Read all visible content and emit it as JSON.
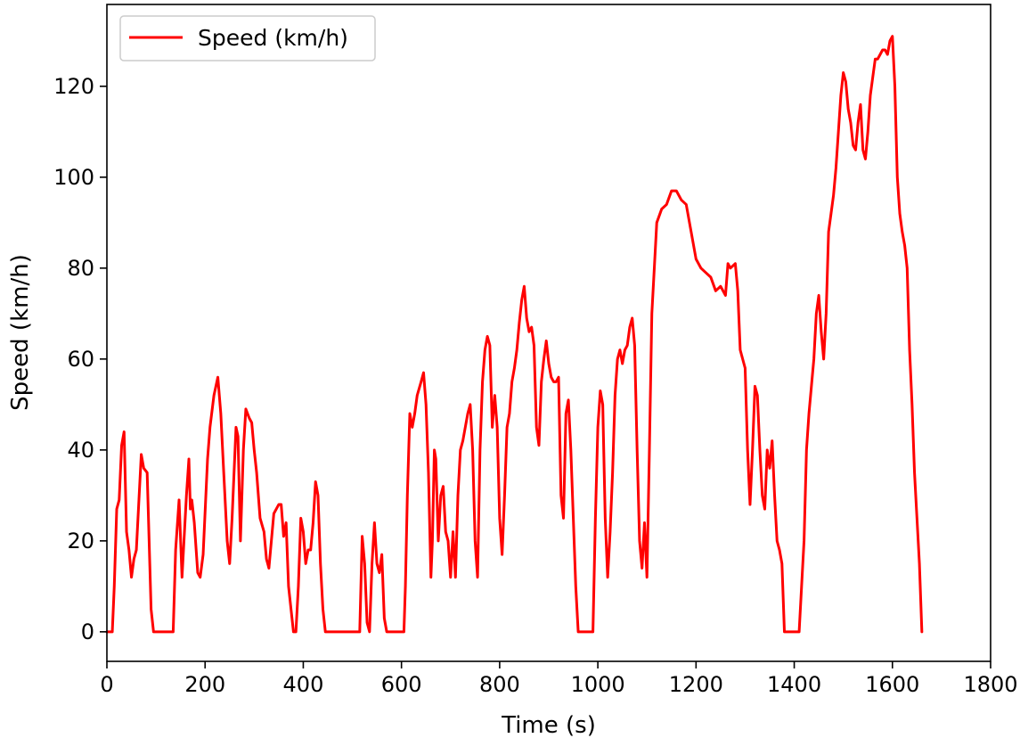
{
  "chart_data": {
    "type": "line",
    "title": "",
    "xlabel": "Time (s)",
    "ylabel": "Speed (km/h)",
    "xlim": [
      0,
      1800
    ],
    "ylim": [
      -6.5,
      138
    ],
    "xticks": [
      0,
      200,
      400,
      600,
      800,
      1000,
      1200,
      1400,
      1600,
      1800
    ],
    "yticks": [
      0,
      20,
      40,
      60,
      80,
      100,
      120
    ],
    "grid": false,
    "legend_position": "top-left",
    "series": [
      {
        "name": "Speed (km/h)",
        "color": "#ff0000",
        "points": [
          [
            0,
            0
          ],
          [
            11,
            0
          ],
          [
            15,
            10
          ],
          [
            20,
            27
          ],
          [
            25,
            29
          ],
          [
            30,
            41
          ],
          [
            35,
            44
          ],
          [
            40,
            22
          ],
          [
            45,
            18
          ],
          [
            50,
            12
          ],
          [
            55,
            16
          ],
          [
            60,
            18
          ],
          [
            70,
            39
          ],
          [
            75,
            36
          ],
          [
            82,
            35
          ],
          [
            90,
            5
          ],
          [
            95,
            0
          ],
          [
            135,
            0
          ],
          [
            140,
            18
          ],
          [
            147,
            29
          ],
          [
            153,
            12
          ],
          [
            157,
            20
          ],
          [
            162,
            30
          ],
          [
            167,
            38
          ],
          [
            170,
            27
          ],
          [
            173,
            29
          ],
          [
            178,
            24
          ],
          [
            185,
            13
          ],
          [
            190,
            12
          ],
          [
            196,
            17
          ],
          [
            205,
            38
          ],
          [
            210,
            45
          ],
          [
            218,
            52
          ],
          [
            226,
            56
          ],
          [
            232,
            48
          ],
          [
            238,
            35
          ],
          [
            245,
            20
          ],
          [
            250,
            15
          ],
          [
            255,
            25
          ],
          [
            263,
            45
          ],
          [
            267,
            43
          ],
          [
            272,
            20
          ],
          [
            278,
            40
          ],
          [
            283,
            49
          ],
          [
            290,
            47
          ],
          [
            295,
            46
          ],
          [
            300,
            40
          ],
          [
            305,
            35
          ],
          [
            312,
            25
          ],
          [
            320,
            22
          ],
          [
            325,
            16
          ],
          [
            330,
            14
          ],
          [
            340,
            26
          ],
          [
            350,
            28
          ],
          [
            355,
            28
          ],
          [
            360,
            21
          ],
          [
            365,
            24
          ],
          [
            370,
            10
          ],
          [
            375,
            5
          ],
          [
            380,
            0
          ],
          [
            385,
            0
          ],
          [
            390,
            10
          ],
          [
            395,
            25
          ],
          [
            400,
            22
          ],
          [
            405,
            15
          ],
          [
            410,
            18
          ],
          [
            415,
            18
          ],
          [
            420,
            24
          ],
          [
            425,
            33
          ],
          [
            430,
            30
          ],
          [
            435,
            15
          ],
          [
            440,
            5
          ],
          [
            445,
            0
          ],
          [
            515,
            0
          ],
          [
            520,
            21
          ],
          [
            525,
            15
          ],
          [
            530,
            2
          ],
          [
            535,
            0
          ],
          [
            540,
            15
          ],
          [
            545,
            24
          ],
          [
            550,
            15
          ],
          [
            555,
            13
          ],
          [
            560,
            17
          ],
          [
            565,
            3
          ],
          [
            570,
            0
          ],
          [
            605,
            0
          ],
          [
            608,
            10
          ],
          [
            612,
            30
          ],
          [
            617,
            48
          ],
          [
            622,
            45
          ],
          [
            627,
            48
          ],
          [
            632,
            52
          ],
          [
            640,
            55
          ],
          [
            645,
            57
          ],
          [
            650,
            50
          ],
          [
            655,
            35
          ],
          [
            660,
            12
          ],
          [
            663,
            20
          ],
          [
            667,
            40
          ],
          [
            670,
            38
          ],
          [
            675,
            20
          ],
          [
            680,
            30
          ],
          [
            685,
            32
          ],
          [
            690,
            22
          ],
          [
            695,
            20
          ],
          [
            700,
            12
          ],
          [
            705,
            22
          ],
          [
            710,
            12
          ],
          [
            715,
            30
          ],
          [
            720,
            40
          ],
          [
            725,
            42
          ],
          [
            730,
            45
          ],
          [
            735,
            48
          ],
          [
            740,
            50
          ],
          [
            745,
            40
          ],
          [
            750,
            20
          ],
          [
            755,
            12
          ],
          [
            760,
            40
          ],
          [
            765,
            55
          ],
          [
            770,
            62
          ],
          [
            775,
            65
          ],
          [
            780,
            63
          ],
          [
            785,
            45
          ],
          [
            790,
            52
          ],
          [
            795,
            45
          ],
          [
            800,
            25
          ],
          [
            805,
            17
          ],
          [
            810,
            30
          ],
          [
            815,
            45
          ],
          [
            820,
            48
          ],
          [
            825,
            55
          ],
          [
            830,
            58
          ],
          [
            835,
            62
          ],
          [
            840,
            68
          ],
          [
            845,
            73
          ],
          [
            850,
            76
          ],
          [
            855,
            69
          ],
          [
            860,
            66
          ],
          [
            865,
            67
          ],
          [
            870,
            63
          ],
          [
            875,
            45
          ],
          [
            880,
            41
          ],
          [
            885,
            55
          ],
          [
            890,
            60
          ],
          [
            895,
            64
          ],
          [
            900,
            59
          ],
          [
            905,
            56
          ],
          [
            910,
            55
          ],
          [
            915,
            55
          ],
          [
            920,
            56
          ],
          [
            925,
            30
          ],
          [
            930,
            25
          ],
          [
            935,
            48
          ],
          [
            940,
            51
          ],
          [
            945,
            40
          ],
          [
            950,
            25
          ],
          [
            955,
            10
          ],
          [
            960,
            0
          ],
          [
            990,
            0
          ],
          [
            995,
            25
          ],
          [
            1000,
            45
          ],
          [
            1005,
            53
          ],
          [
            1010,
            50
          ],
          [
            1015,
            25
          ],
          [
            1020,
            12
          ],
          [
            1025,
            22
          ],
          [
            1030,
            35
          ],
          [
            1035,
            52
          ],
          [
            1040,
            60
          ],
          [
            1045,
            62
          ],
          [
            1050,
            59
          ],
          [
            1055,
            62
          ],
          [
            1060,
            63
          ],
          [
            1065,
            67
          ],
          [
            1070,
            69
          ],
          [
            1075,
            63
          ],
          [
            1080,
            40
          ],
          [
            1085,
            20
          ],
          [
            1090,
            14
          ],
          [
            1095,
            24
          ],
          [
            1100,
            12
          ],
          [
            1105,
            40
          ],
          [
            1110,
            70
          ],
          [
            1115,
            80
          ],
          [
            1120,
            90
          ],
          [
            1130,
            93
          ],
          [
            1140,
            94
          ],
          [
            1150,
            97
          ],
          [
            1160,
            97
          ],
          [
            1170,
            95
          ],
          [
            1180,
            94
          ],
          [
            1190,
            88
          ],
          [
            1200,
            82
          ],
          [
            1210,
            80
          ],
          [
            1220,
            79
          ],
          [
            1230,
            78
          ],
          [
            1240,
            75
          ],
          [
            1250,
            76
          ],
          [
            1260,
            74
          ],
          [
            1265,
            81
          ],
          [
            1270,
            80
          ],
          [
            1280,
            81
          ],
          [
            1285,
            75
          ],
          [
            1290,
            62
          ],
          [
            1295,
            60
          ],
          [
            1300,
            58
          ],
          [
            1305,
            40
          ],
          [
            1310,
            28
          ],
          [
            1315,
            40
          ],
          [
            1320,
            54
          ],
          [
            1325,
            52
          ],
          [
            1330,
            40
          ],
          [
            1335,
            30
          ],
          [
            1340,
            27
          ],
          [
            1345,
            40
          ],
          [
            1350,
            36
          ],
          [
            1355,
            42
          ],
          [
            1360,
            30
          ],
          [
            1365,
            20
          ],
          [
            1370,
            18
          ],
          [
            1375,
            15
          ],
          [
            1380,
            0
          ],
          [
            1410,
            0
          ],
          [
            1415,
            10
          ],
          [
            1420,
            20
          ],
          [
            1425,
            40
          ],
          [
            1430,
            48
          ],
          [
            1435,
            54
          ],
          [
            1440,
            60
          ],
          [
            1445,
            70
          ],
          [
            1450,
            74
          ],
          [
            1455,
            66
          ],
          [
            1460,
            60
          ],
          [
            1465,
            70
          ],
          [
            1470,
            88
          ],
          [
            1475,
            92
          ],
          [
            1480,
            96
          ],
          [
            1485,
            102
          ],
          [
            1490,
            110
          ],
          [
            1495,
            118
          ],
          [
            1500,
            123
          ],
          [
            1505,
            121
          ],
          [
            1510,
            115
          ],
          [
            1515,
            112
          ],
          [
            1520,
            107
          ],
          [
            1525,
            106
          ],
          [
            1530,
            112
          ],
          [
            1535,
            116
          ],
          [
            1540,
            106
          ],
          [
            1545,
            104
          ],
          [
            1550,
            110
          ],
          [
            1555,
            118
          ],
          [
            1560,
            122
          ],
          [
            1565,
            126
          ],
          [
            1570,
            126
          ],
          [
            1575,
            127
          ],
          [
            1580,
            128
          ],
          [
            1585,
            128
          ],
          [
            1590,
            127
          ],
          [
            1595,
            130
          ],
          [
            1600,
            131
          ],
          [
            1605,
            120
          ],
          [
            1610,
            100
          ],
          [
            1615,
            92
          ],
          [
            1620,
            88
          ],
          [
            1625,
            85
          ],
          [
            1630,
            80
          ],
          [
            1635,
            62
          ],
          [
            1640,
            50
          ],
          [
            1645,
            35
          ],
          [
            1650,
            25
          ],
          [
            1655,
            15
          ],
          [
            1660,
            0
          ]
        ]
      }
    ]
  }
}
